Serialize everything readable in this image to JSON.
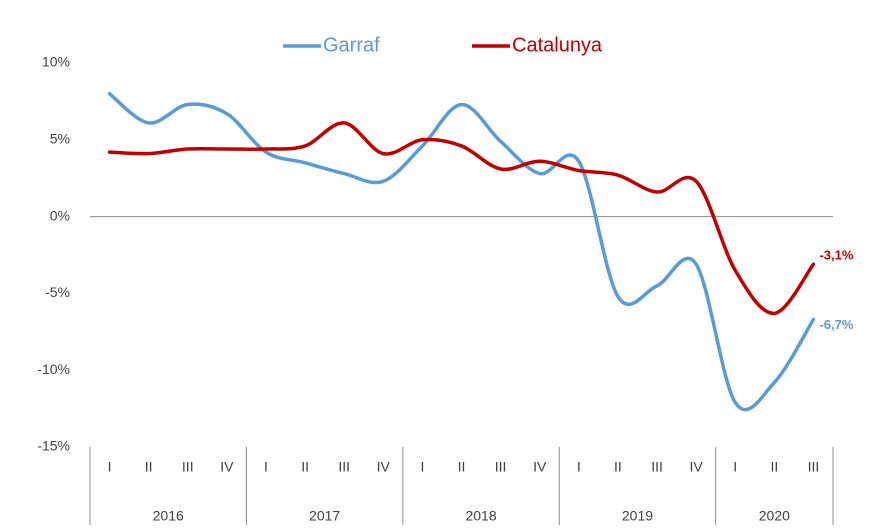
{
  "chart_data": {
    "type": "line",
    "categories": [
      "I",
      "II",
      "III",
      "IV",
      "I",
      "II",
      "III",
      "IV",
      "I",
      "II",
      "III",
      "IV",
      "I",
      "II",
      "III",
      "IV",
      "I",
      "II",
      "III"
    ],
    "x_groups": [
      "2016",
      "2017",
      "2018",
      "2019",
      "2020"
    ],
    "series": [
      {
        "name": "Garraf",
        "color": "#5b9bd5",
        "values": [
          8.0,
          6.1,
          7.3,
          6.7,
          4.2,
          3.5,
          2.8,
          2.3,
          4.6,
          7.3,
          4.9,
          2.8,
          3.6,
          -5.2,
          -4.5,
          -3.1,
          -12.1,
          -10.8,
          -6.7
        ],
        "value_labels": [
          null,
          null,
          null,
          null,
          null,
          null,
          null,
          null,
          null,
          null,
          null,
          null,
          null,
          null,
          null,
          null,
          null,
          null,
          "-6,7%"
        ]
      },
      {
        "name": "Catalunya",
        "color": "#c00000",
        "values": [
          4.2,
          4.1,
          4.4,
          4.4,
          4.4,
          4.6,
          6.1,
          4.1,
          5.0,
          4.6,
          3.1,
          3.6,
          3.0,
          2.7,
          1.6,
          2.3,
          -3.5,
          -6.3,
          -3.1
        ],
        "value_labels": [
          null,
          null,
          null,
          null,
          null,
          null,
          null,
          null,
          null,
          null,
          null,
          null,
          null,
          null,
          null,
          null,
          null,
          null,
          "-3,1%"
        ]
      }
    ],
    "ylim": [
      -15,
      10
    ],
    "yticks": [
      {
        "value": -15,
        "label": "-15%"
      },
      {
        "value": -10,
        "label": "-10%"
      },
      {
        "value": -5,
        "label": "-5%"
      },
      {
        "value": 0,
        "label": "0%"
      },
      {
        "value": 5,
        "label": "5%"
      },
      {
        "value": 10,
        "label": "10%"
      }
    ],
    "legend": "top"
  }
}
